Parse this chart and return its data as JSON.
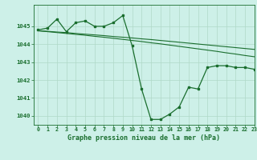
{
  "title": "Graphe pression niveau de la mer (hPa)",
  "background_color": "#cdf0e8",
  "grid_color": "#b0d8c8",
  "line_color": "#1a6e2e",
  "xlim": [
    -0.5,
    23
  ],
  "ylim": [
    1039.5,
    1046.2
  ],
  "yticks": [
    1040,
    1041,
    1042,
    1043,
    1044,
    1045
  ],
  "xticks": [
    0,
    1,
    2,
    3,
    4,
    5,
    6,
    7,
    8,
    9,
    10,
    11,
    12,
    13,
    14,
    15,
    16,
    17,
    18,
    19,
    20,
    21,
    22,
    23
  ],
  "series_main": [
    1044.8,
    1044.9,
    1045.4,
    1044.7,
    1045.2,
    1045.3,
    1045.0,
    1045.0,
    1045.2,
    1045.6,
    1043.9,
    1041.5,
    1039.8,
    1039.8,
    1040.1,
    1040.5,
    1041.6,
    1041.5,
    1042.7,
    1042.8,
    1042.8,
    1042.7,
    1042.7,
    1042.6
  ],
  "series_line1": [
    1044.75,
    1044.72,
    1044.68,
    1044.65,
    1044.6,
    1044.56,
    1044.52,
    1044.48,
    1044.43,
    1044.39,
    1044.35,
    1044.3,
    1044.26,
    1044.21,
    1044.16,
    1044.11,
    1044.06,
    1044.01,
    1043.96,
    1043.91,
    1043.86,
    1043.81,
    1043.76,
    1043.71
  ],
  "series_line2": [
    1044.75,
    1044.7,
    1044.65,
    1044.6,
    1044.55,
    1044.5,
    1044.44,
    1044.39,
    1044.33,
    1044.27,
    1044.21,
    1044.15,
    1044.08,
    1044.02,
    1043.95,
    1043.88,
    1043.81,
    1043.74,
    1043.67,
    1043.6,
    1043.52,
    1043.45,
    1043.37,
    1043.3
  ]
}
